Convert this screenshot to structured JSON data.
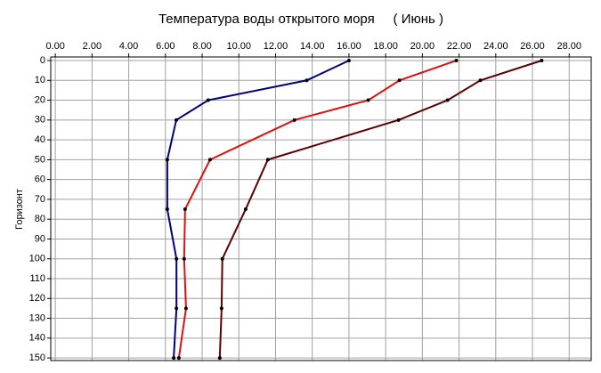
{
  "chart_data": {
    "type": "line",
    "title": "Температура воды открытого моря     ( Июнь )",
    "y_label": "Горизонт",
    "y": [
      0,
      10,
      20,
      30,
      50,
      75,
      100,
      125,
      150
    ],
    "series": [
      {
        "color": "#000080",
        "values": [
          16.0,
          13.7,
          8.33,
          6.59,
          6.1,
          6.1,
          6.6,
          6.6,
          6.45
        ]
      },
      {
        "color": "#e01010",
        "values": [
          21.85,
          18.75,
          17.05,
          13.03,
          8.43,
          7.07,
          7.02,
          7.12,
          6.73
        ]
      },
      {
        "color": "#600000",
        "values": [
          26.5,
          23.16,
          21.37,
          18.7,
          11.58,
          10.37,
          9.1,
          9.06,
          8.96
        ]
      }
    ],
    "xlim": [
      -0.25,
      29.2
    ],
    "xticks": [
      {
        "value": 0,
        "label": "0.00"
      },
      {
        "value": 2,
        "label": "2.00"
      },
      {
        "value": 4,
        "label": "4.00"
      },
      {
        "value": 6,
        "label": "6.00"
      },
      {
        "value": 8,
        "label": "8.00"
      },
      {
        "value": 10,
        "label": "10.00"
      },
      {
        "value": 12,
        "label": "12.00"
      },
      {
        "value": 14,
        "label": "14.00"
      },
      {
        "value": 16,
        "label": "16.00"
      },
      {
        "value": 18,
        "label": "18.00"
      },
      {
        "value": 20,
        "label": "20.00"
      },
      {
        "value": 22,
        "label": "22.00"
      },
      {
        "value": 24,
        "label": "24.00"
      },
      {
        "value": 26,
        "label": "26.00"
      },
      {
        "value": 28,
        "label": "28.00"
      }
    ],
    "ylim": [
      -1.8,
      151.3
    ],
    "yticks": [
      0,
      10,
      20,
      30,
      40,
      50,
      60,
      70,
      80,
      90,
      100,
      110,
      120,
      130,
      140,
      150
    ],
    "y_inverted": true,
    "grid": true
  }
}
